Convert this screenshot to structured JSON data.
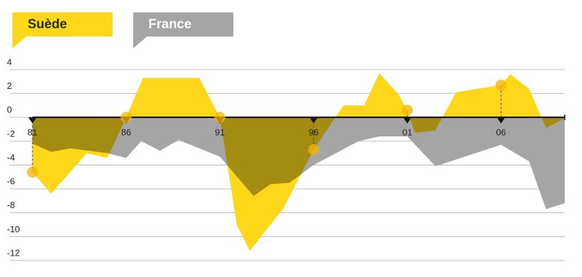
{
  "chart_data": {
    "type": "area",
    "series": [
      {
        "name": "Suède",
        "color": "#fdd71a",
        "x": [
          1981,
          1982,
          1983.9,
          1985,
          1986,
          1986.9,
          1989.9,
          1991,
          1991.9,
          1992.6,
          1994.4,
          1996,
          1997.6,
          1998.7,
          1999.5,
          2000.5,
          2001,
          2001.4,
          2002.5,
          2003.6,
          2006,
          2006.5,
          2007.5,
          2008.4,
          2009.4
        ],
        "values": [
          -4.6,
          -6.4,
          -3,
          -3.4,
          0,
          3.3,
          3.3,
          0,
          -9,
          -11.2,
          -7.6,
          -2.7,
          1,
          1,
          3.7,
          2,
          0.6,
          -1.3,
          -1.1,
          2.1,
          2.7,
          3.6,
          2.4,
          -0.9,
          -0.1
        ]
      },
      {
        "name": "France",
        "color": "#a5a5a5",
        "x": [
          1981,
          1982,
          1983,
          1985,
          1986,
          1986.8,
          1987.8,
          1988.8,
          1991,
          1992.8,
          1993.7,
          1994.7,
          1996,
          1998.4,
          1999.5,
          2001,
          2002.5,
          2006,
          2007.5,
          2008.4,
          2009.4
        ],
        "values": [
          -2.2,
          -2.9,
          -2.6,
          -3,
          -3.4,
          -2,
          -2.8,
          -1.9,
          -3.3,
          -6.6,
          -5.6,
          -5.5,
          -4,
          -2,
          -1.6,
          -1.6,
          -4.1,
          -2.3,
          -3.7,
          -7.7,
          -7.2
        ]
      }
    ],
    "xlim": [
      1981,
      2009.4
    ],
    "xticks": [
      {
        "value": 1981,
        "label": "81"
      },
      {
        "value": 1986,
        "label": "86"
      },
      {
        "value": 1991,
        "label": "91"
      },
      {
        "value": 1996,
        "label": "96"
      },
      {
        "value": 2001,
        "label": "01"
      },
      {
        "value": 2006,
        "label": "06"
      }
    ],
    "ylim": [
      4,
      -12
    ],
    "yticks": [
      4,
      2,
      0,
      -2,
      -4,
      -6,
      -8,
      -10,
      -12
    ],
    "grid": true
  }
}
